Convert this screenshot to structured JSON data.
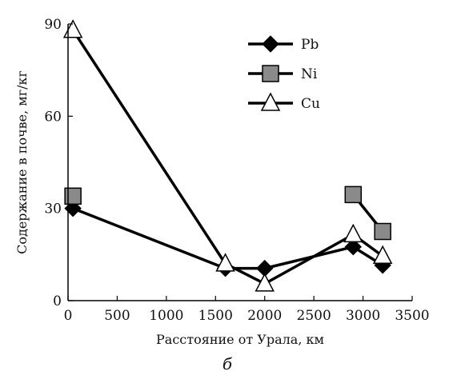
{
  "chart_data": {
    "type": "line",
    "title": "",
    "caption": "б",
    "xlabel": "Расстояние от Урала, км",
    "ylabel": "Содержание в почве,  мг/кг",
    "xlim": [
      0,
      3500
    ],
    "ylim": [
      0,
      90
    ],
    "xticks": [
      0,
      500,
      1000,
      1500,
      2000,
      2500,
      3000,
      3500
    ],
    "yticks": [
      0,
      30,
      60,
      90
    ],
    "grid": false,
    "legend_position": "top-right",
    "series": [
      {
        "name": "Pb",
        "marker": "diamond",
        "marker_color": "#000000",
        "segments": [
          [
            [
              50,
              30
            ],
            [
              1600,
              10.5
            ],
            [
              2000,
              10.5
            ],
            [
              2900,
              17.5
            ],
            [
              3200,
              11.5
            ]
          ]
        ]
      },
      {
        "name": "Ni",
        "marker": "square",
        "marker_color": "#8a8a8a",
        "segments": [
          [
            [
              50,
              34
            ]
          ],
          [
            [
              2900,
              34.5
            ],
            [
              3200,
              22.5
            ]
          ]
        ]
      },
      {
        "name": "Cu",
        "marker": "triangle",
        "marker_color": "#ffffff",
        "segments": [
          [
            [
              50,
              88
            ],
            [
              1600,
              12
            ],
            [
              2000,
              5.5
            ],
            [
              2900,
              21.5
            ],
            [
              3200,
              14.5
            ]
          ]
        ]
      }
    ]
  }
}
